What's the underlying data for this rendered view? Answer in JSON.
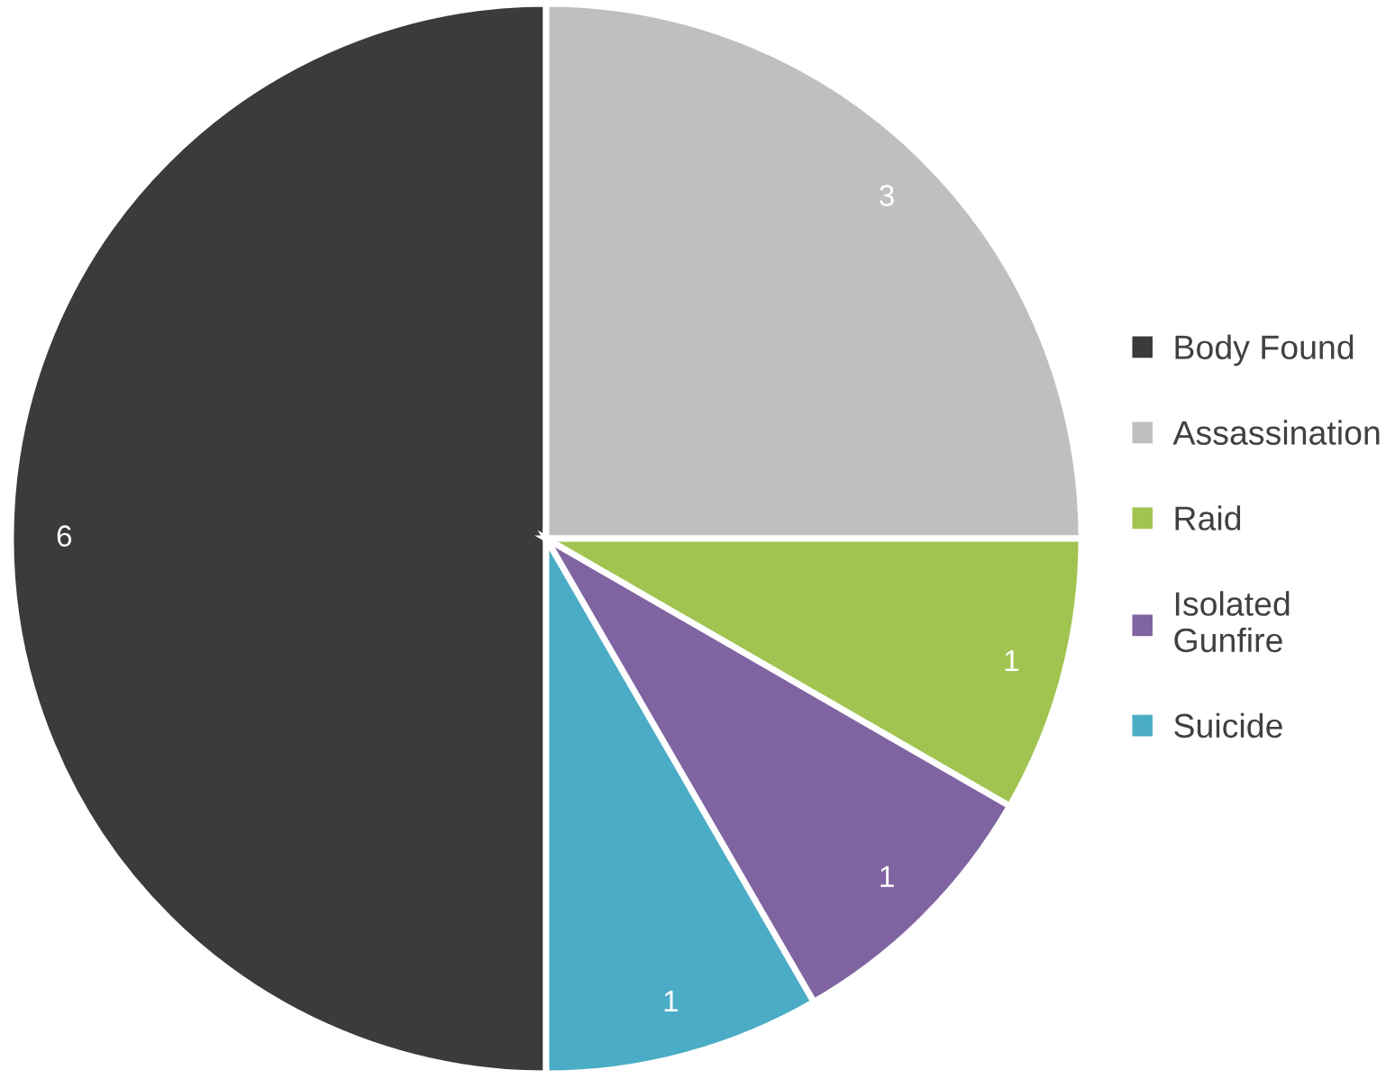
{
  "chart_data": {
    "type": "pie",
    "categories": [
      "Body Found",
      "Assassination",
      "Raid",
      "Isolated Gunfire",
      "Suicide"
    ],
    "values": [
      6,
      3,
      1,
      1,
      1
    ],
    "colors": [
      "#3a3b3d",
      "#bfbfbf",
      "#a1c450",
      "#8064a2",
      "#4bacc6"
    ],
    "data_labels": true,
    "legend": "right"
  }
}
